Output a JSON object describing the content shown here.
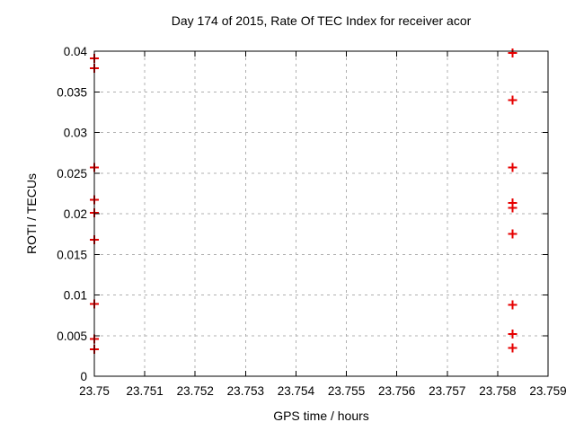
{
  "page": {
    "background": "#ffffff",
    "text_color": "#000000"
  },
  "chart_data": {
    "type": "scatter",
    "title": "Day 174 of 2015, Rate Of TEC Index for receiver acor",
    "xlabel": "GPS time / hours",
    "ylabel": "ROTI / TECUs",
    "xlim": [
      23.75,
      23.759
    ],
    "ylim": [
      0,
      0.04
    ],
    "xticks": {
      "values": [
        23.75,
        23.751,
        23.752,
        23.753,
        23.754,
        23.755,
        23.756,
        23.757,
        23.758,
        23.759
      ],
      "labels": [
        "23.75",
        "23.751",
        "23.752",
        "23.753",
        "23.754",
        "23.755",
        "23.756",
        "23.757",
        "23.758",
        "23.759"
      ]
    },
    "yticks": {
      "values": [
        0,
        0.005,
        0.01,
        0.015,
        0.02,
        0.025,
        0.03,
        0.035,
        0.04
      ],
      "labels": [
        "0",
        "0.005",
        "0.01",
        "0.015",
        "0.02",
        "0.025",
        "0.03",
        "0.035",
        "0.04"
      ]
    },
    "grid": true,
    "legend_position": "none",
    "marker": {
      "shape": "plus",
      "color": "#e60000",
      "half_size": 5,
      "stroke_width": 2
    },
    "grid_color": "#b0b0b0",
    "axis_color": "#000000",
    "series": [
      {
        "points": [
          [
            23.75,
            0.0391
          ],
          [
            23.75,
            0.0379
          ],
          [
            23.75,
            0.0257
          ],
          [
            23.75,
            0.0217
          ],
          [
            23.75,
            0.0201
          ],
          [
            23.75,
            0.0168
          ],
          [
            23.75,
            0.0089
          ],
          [
            23.75,
            0.0046
          ],
          [
            23.75,
            0.0033
          ],
          [
            23.7583,
            0.0398
          ],
          [
            23.7583,
            0.034
          ],
          [
            23.7583,
            0.0257
          ],
          [
            23.7583,
            0.0213
          ],
          [
            23.7583,
            0.0207
          ],
          [
            23.7583,
            0.0175
          ],
          [
            23.7583,
            0.0088
          ],
          [
            23.7583,
            0.0052
          ],
          [
            23.7583,
            0.0035
          ]
        ]
      }
    ]
  }
}
